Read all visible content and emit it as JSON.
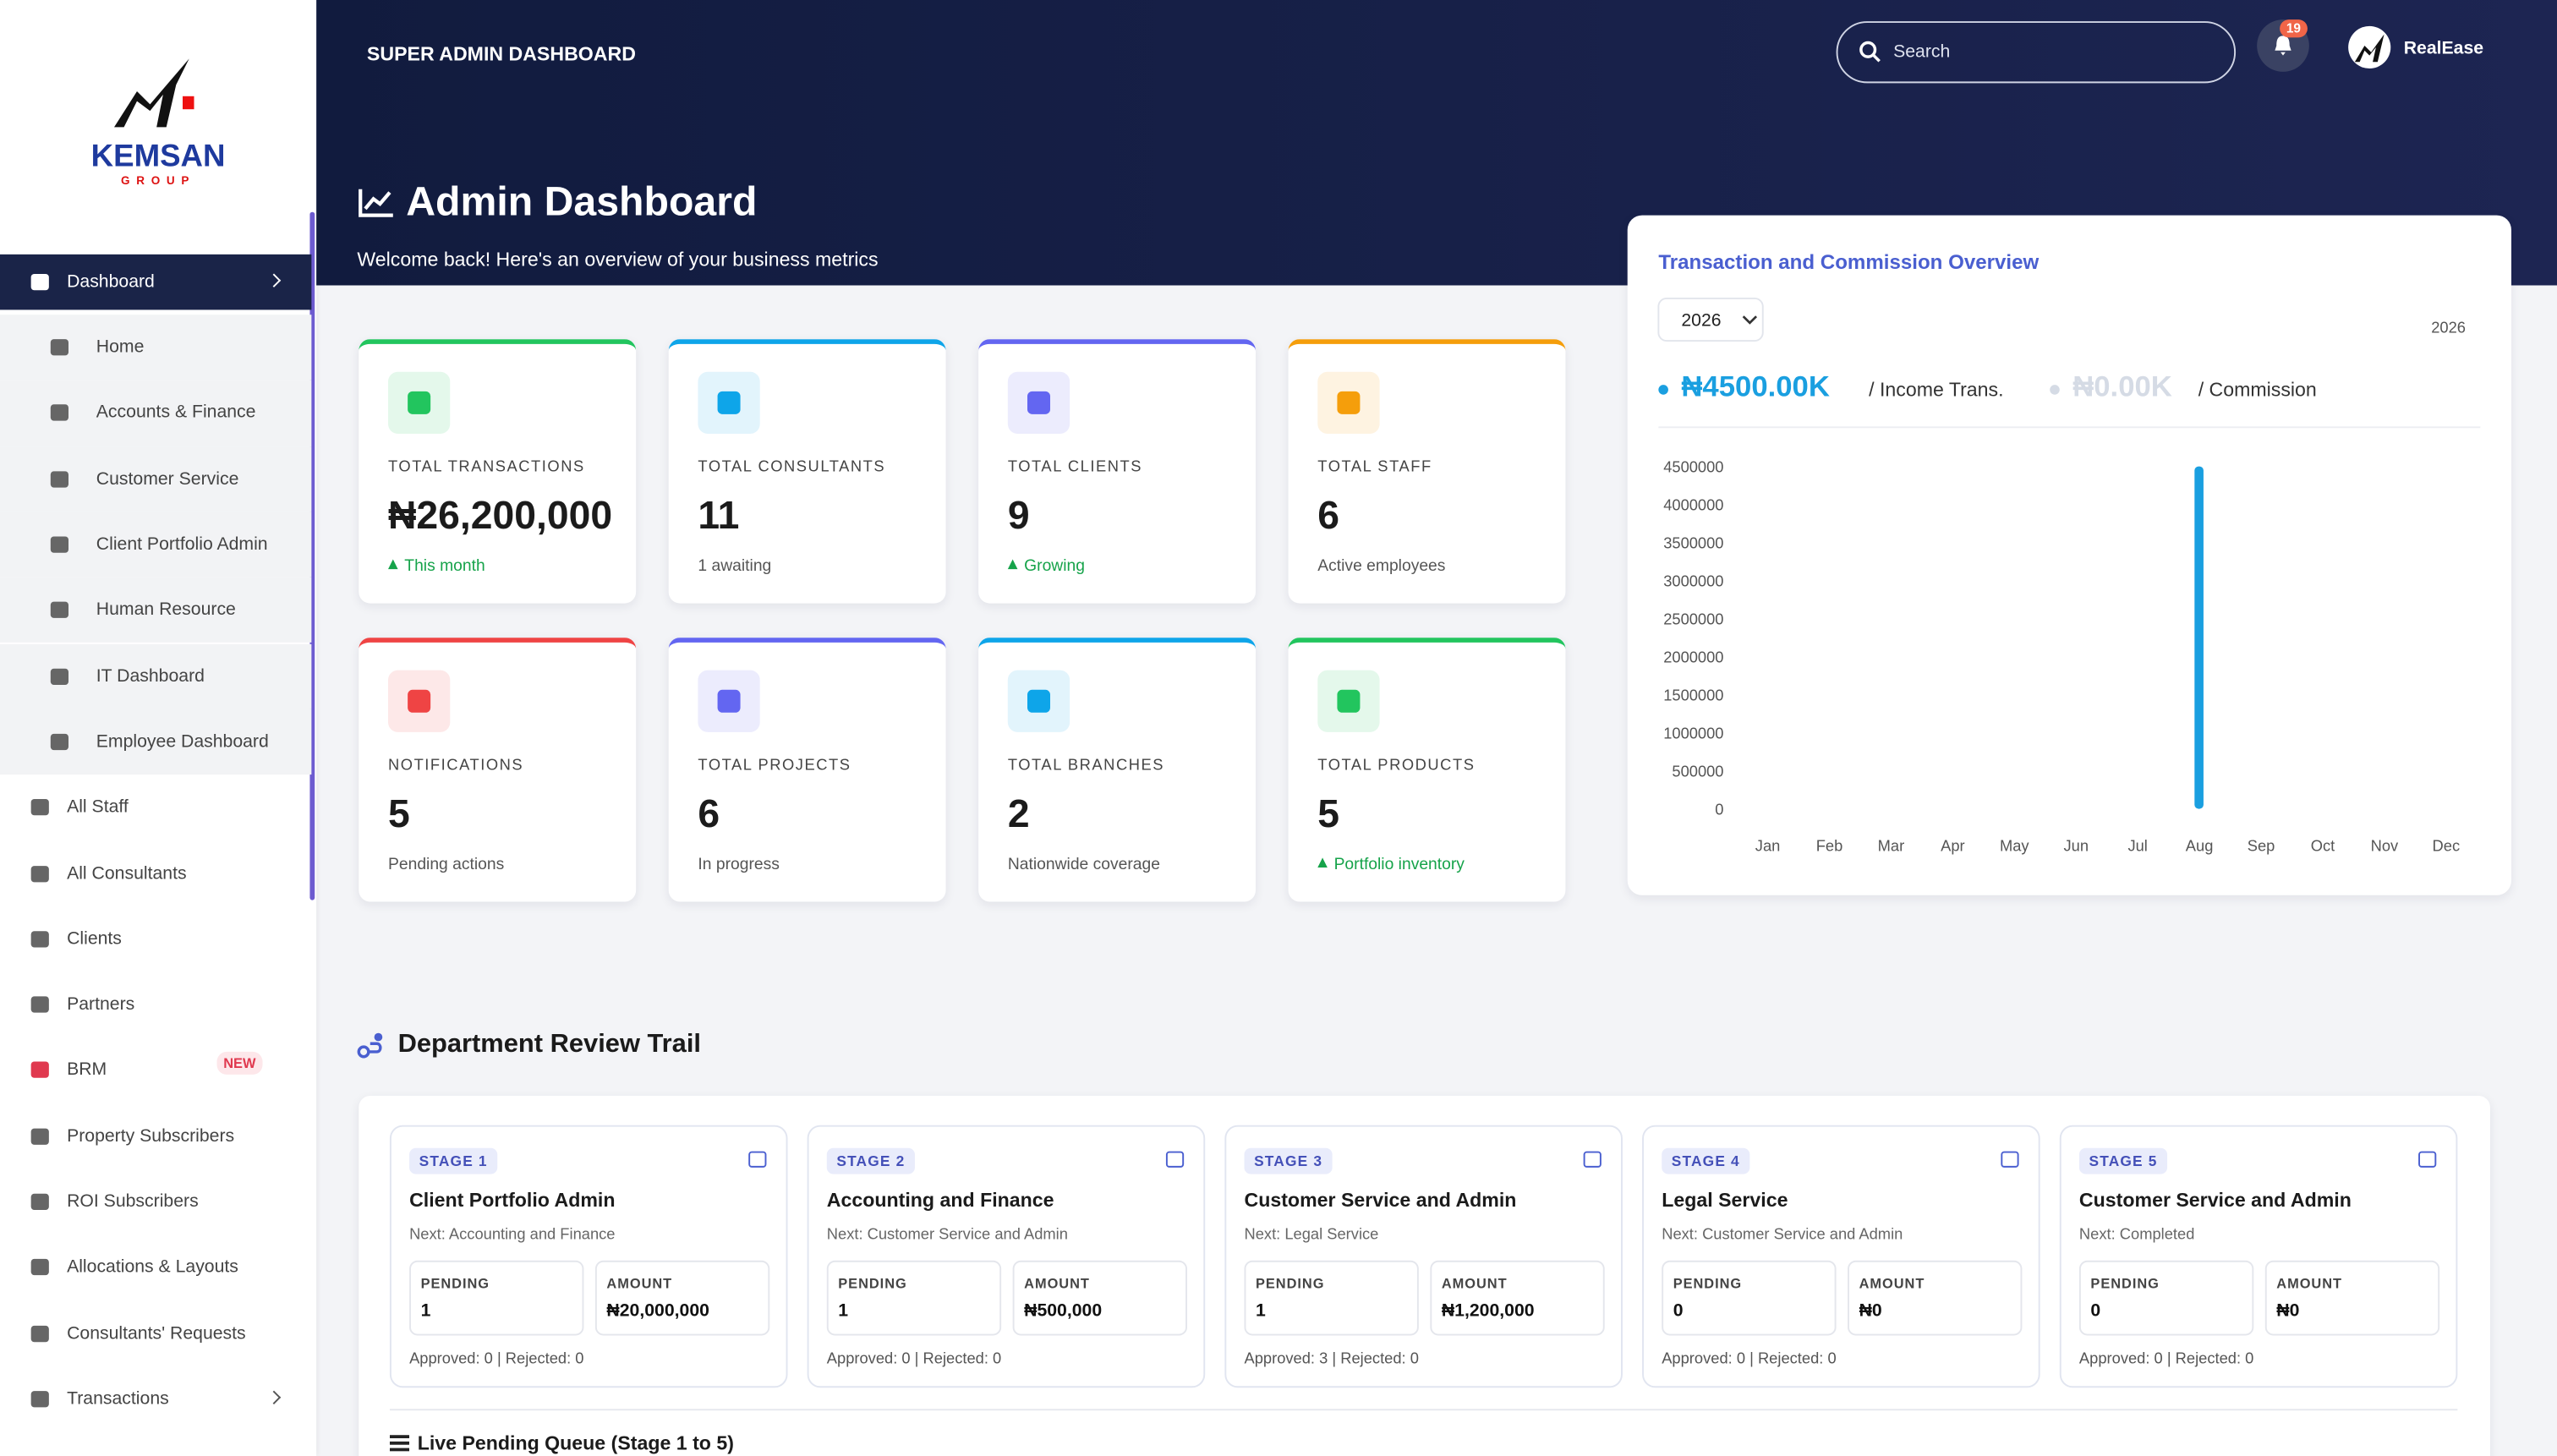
{
  "sidebar": {
    "brand": "KEMSAN",
    "brand_sub": "GROUP",
    "items": [
      {
        "label": "Dashboard",
        "level": "main",
        "active": true,
        "arrow": true
      },
      {
        "label": "Home",
        "level": "sub"
      },
      {
        "label": "Accounts & Finance",
        "level": "sub"
      },
      {
        "label": "Customer Service",
        "level": "sub"
      },
      {
        "label": "Client Portfolio Admin",
        "level": "sub"
      },
      {
        "label": "Human Resource",
        "level": "sub"
      },
      {
        "label": "IT Dashboard",
        "level": "sub"
      },
      {
        "label": "Employee Dashboard",
        "level": "sub"
      },
      {
        "label": "All Staff",
        "level": "main"
      },
      {
        "label": "All Consultants",
        "level": "main"
      },
      {
        "label": "Clients",
        "level": "main"
      },
      {
        "label": "Partners",
        "level": "main"
      },
      {
        "label": "BRM",
        "level": "main",
        "badge": "NEW"
      },
      {
        "label": "Property Subscribers",
        "level": "main"
      },
      {
        "label": "ROI Subscribers",
        "level": "main"
      },
      {
        "label": "Allocations & Layouts",
        "level": "main"
      },
      {
        "label": "Consultants' Requests",
        "level": "main"
      },
      {
        "label": "Transactions",
        "level": "main",
        "arrow": true
      }
    ]
  },
  "header": {
    "title": "SUPER ADMIN DASHBOARD",
    "search_placeholder": "Search",
    "notification_count": 19,
    "user": "RealEase"
  },
  "page": {
    "title": "Admin Dashboard",
    "subtitle": "Welcome back! Here's an overview of your business metrics"
  },
  "stats": [
    {
      "label": "TOTAL TRANSACTIONS",
      "value": "₦26,200,000",
      "note": "This month",
      "trend": true,
      "color": "#22c55e"
    },
    {
      "label": "TOTAL CONSULTANTS",
      "value": 11,
      "note": "1 awaiting",
      "color": "#0ea5e9"
    },
    {
      "label": "TOTAL CLIENTS",
      "value": 9,
      "note": "Growing",
      "trend": true,
      "color": "#6366f1"
    },
    {
      "label": "TOTAL STAFF",
      "value": 6,
      "note": "Active employees",
      "color": "#f59e0b"
    },
    {
      "label": "NOTIFICATIONS",
      "value": 5,
      "note": "Pending actions",
      "color": "#ef4444"
    },
    {
      "label": "TOTAL PROJECTS",
      "value": 6,
      "note": "In progress",
      "color": "#6366f1"
    },
    {
      "label": "TOTAL BRANCHES",
      "value": 2,
      "note": "Nationwide coverage",
      "color": "#0ea5e9"
    },
    {
      "label": "TOTAL PRODUCTS",
      "value": 5,
      "note": "Portfolio inventory",
      "trend": true,
      "color": "#22c55e"
    }
  ],
  "chart_data": {
    "type": "bar",
    "title": "Transaction and Commission Overview",
    "year_select": 2026,
    "year_label": 2026,
    "categories": [
      "Jan",
      "Feb",
      "Mar",
      "Apr",
      "May",
      "Jun",
      "Jul",
      "Aug",
      "Sep",
      "Oct",
      "Nov",
      "Dec"
    ],
    "series": [
      {
        "name": "/ Income Trans.",
        "total_label": "₦4500.00K",
        "color": "#1a9fe0",
        "values": [
          0,
          0,
          0,
          0,
          0,
          0,
          0,
          4500000,
          0,
          0,
          0,
          0
        ]
      },
      {
        "name": "/ Commission",
        "total_label": "₦0.00K",
        "color": "#d5dbe5",
        "values": [
          0,
          0,
          0,
          0,
          0,
          0,
          0,
          0,
          0,
          0,
          0,
          0
        ]
      }
    ],
    "ylim": [
      0,
      4500000
    ],
    "yticks": [
      0,
      500000,
      1000000,
      1500000,
      2000000,
      2500000,
      3000000,
      3500000,
      4000000,
      4500000
    ],
    "grid": false
  },
  "review": {
    "title": "Department Review Trail",
    "stages": [
      {
        "stage": "STAGE 1",
        "title": "Client Portfolio Admin",
        "next": "Next: Accounting and Finance",
        "pending_label": "PENDING",
        "pending": 1,
        "amount_label": "AMOUNT",
        "amount": "₦20,000,000",
        "summary": "Approved: 0 | Rejected: 0"
      },
      {
        "stage": "STAGE 2",
        "title": "Accounting and Finance",
        "next": "Next: Customer Service and Admin",
        "pending_label": "PENDING",
        "pending": 1,
        "amount_label": "AMOUNT",
        "amount": "₦500,000",
        "summary": "Approved: 0 | Rejected: 0"
      },
      {
        "stage": "STAGE 3",
        "title": "Customer Service and Admin",
        "next": "Next: Legal Service",
        "pending_label": "PENDING",
        "pending": 1,
        "amount_label": "AMOUNT",
        "amount": "₦1,200,000",
        "summary": "Approved: 3 | Rejected: 0"
      },
      {
        "stage": "STAGE 4",
        "title": "Legal Service",
        "next": "Next: Customer Service and Admin",
        "pending_label": "PENDING",
        "pending": 0,
        "amount_label": "AMOUNT",
        "amount": "₦0",
        "summary": "Approved: 0 | Rejected: 0"
      },
      {
        "stage": "STAGE 5",
        "title": "Customer Service and Admin",
        "next": "Next: Completed",
        "pending_label": "PENDING",
        "pending": 0,
        "amount_label": "AMOUNT",
        "amount": "₦0",
        "summary": "Approved: 0 | Rejected: 0"
      }
    ],
    "queue_title": "Live Pending Queue (Stage 1 to 5)"
  }
}
